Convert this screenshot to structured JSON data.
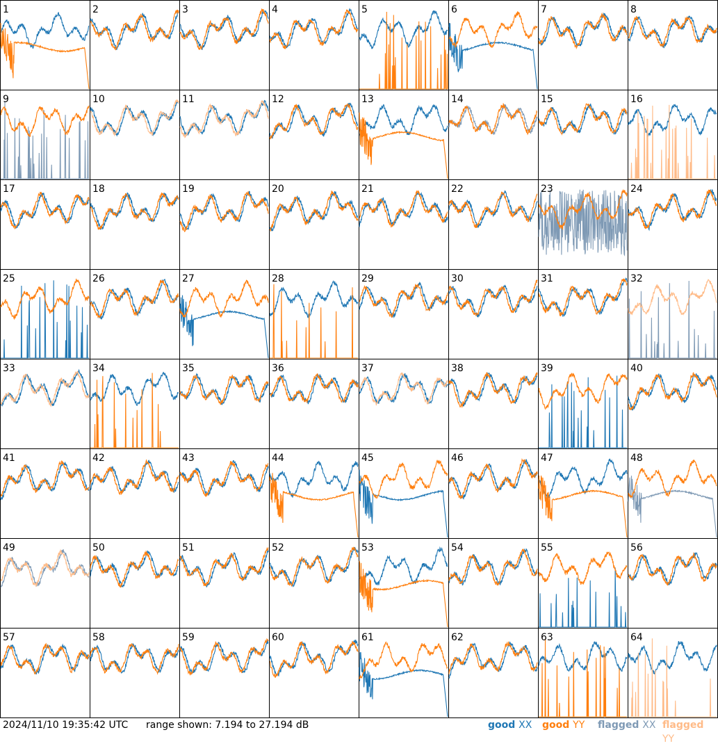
{
  "footer": {
    "timestamp": "2024/11/10 19:35:42 UTC",
    "range_text": "range shown: 7.194 to 27.194 dB"
  },
  "legend": [
    {
      "key": "good_xx",
      "word": "good",
      "symbol": "XX",
      "color": "#1f77b4"
    },
    {
      "key": "good_yy",
      "word": "good",
      "symbol": "YY",
      "color": "#ff7f0e"
    },
    {
      "key": "flagged_xx",
      "word": "flagged",
      "symbol": "XX",
      "color": "#7f9ab5"
    },
    {
      "key": "flagged_yy",
      "word": "flagged",
      "symbol": "YY",
      "color": "#ffbb88"
    }
  ],
  "chart_data": {
    "type": "line",
    "layout": "8x8 small multiples",
    "y_range_db": [
      7.194,
      27.194
    ],
    "tiles": [
      {
        "label": "1",
        "xx": "good",
        "yy": "good",
        "pattern": "yy_smooth_plateau"
      },
      {
        "label": "2",
        "xx": "good",
        "yy": "good",
        "pattern": "normal"
      },
      {
        "label": "3",
        "xx": "good",
        "yy": "good",
        "pattern": "normal"
      },
      {
        "label": "4",
        "xx": "good",
        "yy": "good",
        "pattern": "normal"
      },
      {
        "label": "5",
        "xx": "good",
        "yy": "good",
        "pattern": "yy_spikes"
      },
      {
        "label": "6",
        "xx": "good",
        "yy": "good",
        "pattern": "xx_smooth_plateau"
      },
      {
        "label": "7",
        "xx": "good",
        "yy": "good",
        "pattern": "normal"
      },
      {
        "label": "8",
        "xx": "good",
        "yy": "good",
        "pattern": "normal"
      },
      {
        "label": "9",
        "xx": "flagged",
        "yy": "good",
        "pattern": "xx_spikes"
      },
      {
        "label": "10",
        "xx": "good",
        "yy": "flagged",
        "pattern": "normal"
      },
      {
        "label": "11",
        "xx": "good",
        "yy": "flagged",
        "pattern": "normal"
      },
      {
        "label": "12",
        "xx": "good",
        "yy": "good",
        "pattern": "normal"
      },
      {
        "label": "13",
        "xx": "good",
        "yy": "good",
        "pattern": "yy_smooth_plateau"
      },
      {
        "label": "14",
        "xx": "flagged",
        "yy": "good",
        "pattern": "normal"
      },
      {
        "label": "15",
        "xx": "good",
        "yy": "good",
        "pattern": "normal"
      },
      {
        "label": "16",
        "xx": "good",
        "yy": "flagged",
        "pattern": "yy_spikes"
      },
      {
        "label": "17",
        "xx": "good",
        "yy": "good",
        "pattern": "normal"
      },
      {
        "label": "18",
        "xx": "good",
        "yy": "good",
        "pattern": "normal"
      },
      {
        "label": "19",
        "xx": "good",
        "yy": "good",
        "pattern": "normal"
      },
      {
        "label": "20",
        "xx": "good",
        "yy": "good",
        "pattern": "normal"
      },
      {
        "label": "21",
        "xx": "good",
        "yy": "good",
        "pattern": "normal"
      },
      {
        "label": "22",
        "xx": "good",
        "yy": "good",
        "pattern": "normal"
      },
      {
        "label": "23",
        "xx": "flagged",
        "yy": "good",
        "pattern": "xx_noisy"
      },
      {
        "label": "24",
        "xx": "good",
        "yy": "good",
        "pattern": "normal"
      },
      {
        "label": "25",
        "xx": "good",
        "yy": "good",
        "pattern": "xx_spikes"
      },
      {
        "label": "26",
        "xx": "good",
        "yy": "good",
        "pattern": "normal"
      },
      {
        "label": "27",
        "xx": "good",
        "yy": "good",
        "pattern": "xx_smooth_plateau"
      },
      {
        "label": "28",
        "xx": "good",
        "yy": "good",
        "pattern": "yy_spikes"
      },
      {
        "label": "29",
        "xx": "good",
        "yy": "good",
        "pattern": "normal"
      },
      {
        "label": "30",
        "xx": "good",
        "yy": "good",
        "pattern": "normal"
      },
      {
        "label": "31",
        "xx": "good",
        "yy": "good",
        "pattern": "normal"
      },
      {
        "label": "32",
        "xx": "flagged",
        "yy": "flagged",
        "pattern": "xx_spikes"
      },
      {
        "label": "33",
        "xx": "good",
        "yy": "flagged",
        "pattern": "normal"
      },
      {
        "label": "34",
        "xx": "good",
        "yy": "good",
        "pattern": "yy_spikes"
      },
      {
        "label": "35",
        "xx": "good",
        "yy": "good",
        "pattern": "normal"
      },
      {
        "label": "36",
        "xx": "good",
        "yy": "good",
        "pattern": "normal"
      },
      {
        "label": "37",
        "xx": "good",
        "yy": "flagged",
        "pattern": "normal"
      },
      {
        "label": "38",
        "xx": "good",
        "yy": "good",
        "pattern": "normal"
      },
      {
        "label": "39",
        "xx": "good",
        "yy": "good",
        "pattern": "xx_spikes"
      },
      {
        "label": "40",
        "xx": "good",
        "yy": "good",
        "pattern": "normal"
      },
      {
        "label": "41",
        "xx": "good",
        "yy": "good",
        "pattern": "normal"
      },
      {
        "label": "42",
        "xx": "good",
        "yy": "good",
        "pattern": "normal"
      },
      {
        "label": "43",
        "xx": "good",
        "yy": "good",
        "pattern": "normal"
      },
      {
        "label": "44",
        "xx": "good",
        "yy": "good",
        "pattern": "yy_smooth_plateau"
      },
      {
        "label": "45",
        "xx": "good",
        "yy": "good",
        "pattern": "xx_smooth_plateau"
      },
      {
        "label": "46",
        "xx": "good",
        "yy": "good",
        "pattern": "normal"
      },
      {
        "label": "47",
        "xx": "good",
        "yy": "good",
        "pattern": "yy_smooth_plateau"
      },
      {
        "label": "48",
        "xx": "flagged",
        "yy": "good",
        "pattern": "xx_smooth_plateau"
      },
      {
        "label": "49",
        "xx": "flagged",
        "yy": "flagged",
        "pattern": "normal"
      },
      {
        "label": "50",
        "xx": "good",
        "yy": "good",
        "pattern": "normal"
      },
      {
        "label": "51",
        "xx": "good",
        "yy": "good",
        "pattern": "normal"
      },
      {
        "label": "52",
        "xx": "good",
        "yy": "good",
        "pattern": "normal"
      },
      {
        "label": "53",
        "xx": "good",
        "yy": "good",
        "pattern": "yy_smooth_plateau"
      },
      {
        "label": "54",
        "xx": "good",
        "yy": "good",
        "pattern": "normal"
      },
      {
        "label": "55",
        "xx": "good",
        "yy": "good",
        "pattern": "xx_spikes"
      },
      {
        "label": "56",
        "xx": "good",
        "yy": "good",
        "pattern": "normal"
      },
      {
        "label": "57",
        "xx": "good",
        "yy": "good",
        "pattern": "normal"
      },
      {
        "label": "58",
        "xx": "good",
        "yy": "good",
        "pattern": "normal"
      },
      {
        "label": "59",
        "xx": "good",
        "yy": "good",
        "pattern": "normal"
      },
      {
        "label": "60",
        "xx": "good",
        "yy": "good",
        "pattern": "normal"
      },
      {
        "label": "61",
        "xx": "good",
        "yy": "good",
        "pattern": "xx_smooth_plateau"
      },
      {
        "label": "62",
        "xx": "good",
        "yy": "good",
        "pattern": "normal"
      },
      {
        "label": "63",
        "xx": "good",
        "yy": "good",
        "pattern": "yy_spikes"
      },
      {
        "label": "64",
        "xx": "good",
        "yy": "flagged",
        "pattern": "yy_spikes"
      }
    ]
  }
}
